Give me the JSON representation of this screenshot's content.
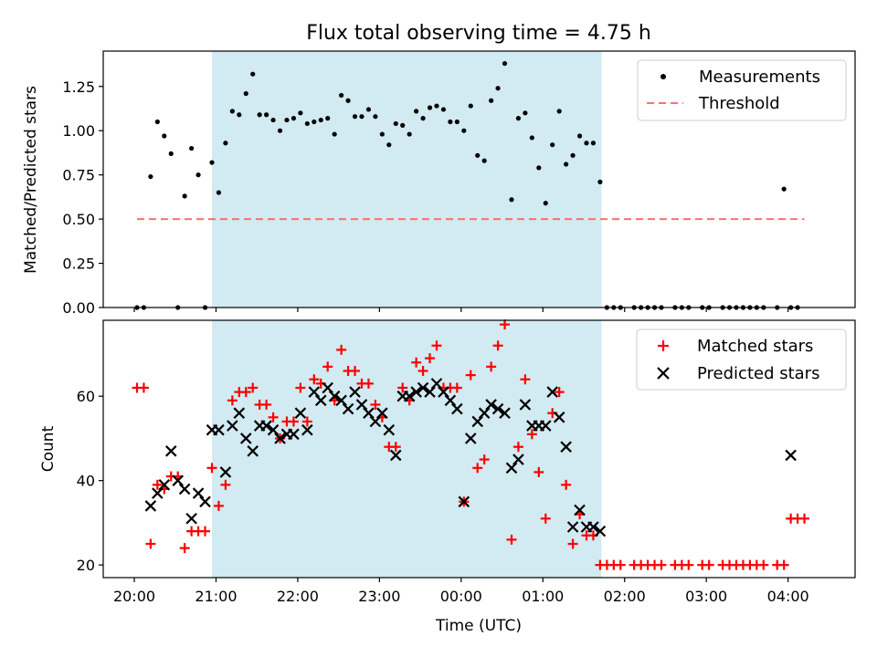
{
  "chart_data": [
    {
      "type": "scatter",
      "title": "Flux total observing time = 4.75 h",
      "ylabel": "Matched/Predicted stars",
      "ylim": [
        0,
        1.45
      ],
      "yticks": [
        0.0,
        0.25,
        0.5,
        0.75,
        1.0,
        1.25
      ],
      "ytick_labels": [
        "0.00",
        "0.25",
        "0.50",
        "0.75",
        "1.00",
        "1.25"
      ],
      "xlim_hours": [
        19.62,
        28.82
      ],
      "shaded_interval": [
        "20:57",
        "01:43"
      ],
      "shaded_color": "#add8e6",
      "legend_position": "upper right",
      "series": [
        {
          "name": "Measurements",
          "marker": "dot",
          "color": "#000000",
          "x": [
            "20:02",
            "20:07",
            "20:12",
            "20:17",
            "20:22",
            "20:27",
            "20:32",
            "20:37",
            "20:42",
            "20:47",
            "20:52",
            "20:57",
            "21:02",
            "21:07",
            "21:12",
            "21:17",
            "21:22",
            "21:27",
            "21:32",
            "21:37",
            "21:42",
            "21:47",
            "21:52",
            "21:57",
            "22:02",
            "22:07",
            "22:12",
            "22:17",
            "22:22",
            "22:27",
            "22:32",
            "22:37",
            "22:42",
            "22:47",
            "22:52",
            "22:57",
            "23:02",
            "23:07",
            "23:12",
            "23:17",
            "23:22",
            "23:27",
            "23:32",
            "23:37",
            "23:42",
            "23:47",
            "23:52",
            "23:57",
            "00:02",
            "00:07",
            "00:12",
            "00:17",
            "00:22",
            "00:27",
            "00:32",
            "00:37",
            "00:42",
            "00:47",
            "00:52",
            "00:57",
            "01:02",
            "01:07",
            "01:12",
            "01:17",
            "01:22",
            "01:27",
            "01:32",
            "01:37",
            "01:42",
            "01:47",
            "01:52",
            "01:57",
            "02:07",
            "02:12",
            "02:17",
            "02:22",
            "02:27",
            "02:37",
            "02:42",
            "02:47",
            "02:57",
            "03:02",
            "03:12",
            "03:17",
            "03:22",
            "03:27",
            "03:32",
            "03:37",
            "03:42",
            "03:52",
            "03:57",
            "04:02",
            "04:07"
          ],
          "y": [
            0,
            0,
            0.74,
            1.05,
            0.97,
            0.87,
            0,
            0.63,
            0.9,
            0.75,
            0,
            0.82,
            0.65,
            0.93,
            1.11,
            1.09,
            1.21,
            1.32,
            1.09,
            1.09,
            1.06,
            1.0,
            1.06,
            1.07,
            1.1,
            1.04,
            1.05,
            1.06,
            1.07,
            0.98,
            1.2,
            1.17,
            1.08,
            1.08,
            1.12,
            1.08,
            0.98,
            0.92,
            1.04,
            1.03,
            0.98,
            1.11,
            1.07,
            1.13,
            1.14,
            1.12,
            1.05,
            1.05,
            1.0,
            1.14,
            0.86,
            0.83,
            1.17,
            1.24,
            1.38,
            0.61,
            1.07,
            1.1,
            0.96,
            0.79,
            0.59,
            0.92,
            1.11,
            0.81,
            0.86,
            0.97,
            0.93,
            0.93,
            0.71,
            0,
            0,
            0,
            0,
            0,
            0,
            0,
            0,
            0,
            0,
            0,
            0,
            0,
            0,
            0,
            0,
            0,
            0,
            0,
            0,
            0,
            0.67,
            0,
            0
          ]
        },
        {
          "name": "Threshold",
          "style": "dashed",
          "color": "#ff6f6f",
          "x": [
            "20:02",
            "04:12"
          ],
          "y": [
            0.5,
            0.5
          ]
        }
      ]
    },
    {
      "type": "scatter",
      "xlabel": "Time (UTC)",
      "ylabel": "Count",
      "ylim": [
        17,
        78
      ],
      "yticks": [
        20,
        40,
        60
      ],
      "ytick_labels": [
        "20",
        "40",
        "60"
      ],
      "xticks": [
        "20:00",
        "21:00",
        "22:00",
        "23:00",
        "00:00",
        "01:00",
        "02:00",
        "03:00",
        "04:00"
      ],
      "xtick_hours": [
        20,
        21,
        22,
        23,
        24,
        25,
        26,
        27,
        28
      ],
      "xlim_hours": [
        19.62,
        28.82
      ],
      "shaded_interval": [
        "20:57",
        "01:43"
      ],
      "shaded_color": "#add8e6",
      "legend_position": "upper right",
      "series": [
        {
          "name": "Matched stars",
          "marker": "plus",
          "color": "#ff0000",
          "x": [
            "20:02",
            "20:07",
            "20:12",
            "20:17",
            "20:22",
            "20:27",
            "20:32",
            "20:37",
            "20:42",
            "20:47",
            "20:52",
            "20:57",
            "21:02",
            "21:07",
            "21:12",
            "21:17",
            "21:22",
            "21:27",
            "21:32",
            "21:37",
            "21:42",
            "21:47",
            "21:52",
            "21:57",
            "22:02",
            "22:07",
            "22:12",
            "22:17",
            "22:22",
            "22:27",
            "22:32",
            "22:37",
            "22:42",
            "22:47",
            "22:52",
            "22:57",
            "23:02",
            "23:07",
            "23:12",
            "23:17",
            "23:22",
            "23:27",
            "23:32",
            "23:37",
            "23:42",
            "23:47",
            "23:52",
            "23:57",
            "00:02",
            "00:07",
            "00:12",
            "00:17",
            "00:22",
            "00:27",
            "00:32",
            "00:37",
            "00:42",
            "00:47",
            "00:52",
            "00:57",
            "01:02",
            "01:07",
            "01:12",
            "01:17",
            "01:22",
            "01:27",
            "01:32",
            "01:37",
            "01:42",
            "01:47",
            "01:52",
            "01:57",
            "02:07",
            "02:12",
            "02:17",
            "02:22",
            "02:27",
            "02:37",
            "02:42",
            "02:47",
            "02:57",
            "03:02",
            "03:12",
            "03:17",
            "03:22",
            "03:27",
            "03:32",
            "03:37",
            "03:42",
            "03:52",
            "03:57",
            "04:02",
            "04:07",
            "04:12"
          ],
          "y": [
            62,
            62,
            25,
            39,
            38,
            41,
            41,
            24,
            28,
            28,
            28,
            43,
            34,
            39,
            59,
            61,
            61,
            62,
            58,
            58,
            55,
            50,
            54,
            54,
            62,
            54,
            64,
            63,
            67,
            59,
            71,
            66,
            66,
            63,
            63,
            58,
            55,
            48,
            48,
            62,
            59,
            68,
            66,
            69,
            72,
            62,
            62,
            62,
            35,
            65,
            43,
            45,
            67,
            72,
            77,
            26,
            48,
            64,
            51,
            42,
            31,
            56,
            61,
            39,
            25,
            32,
            27,
            27,
            20,
            20,
            20,
            20,
            20,
            20,
            20,
            20,
            20,
            20,
            20,
            20,
            20,
            20,
            20,
            20,
            20,
            20,
            20,
            20,
            20,
            20,
            20,
            31,
            31,
            31
          ]
        },
        {
          "name": "Predicted stars",
          "marker": "x",
          "color": "#000000",
          "x": [
            "20:12",
            "20:17",
            "20:22",
            "20:27",
            "20:32",
            "20:37",
            "20:42",
            "20:47",
            "20:52",
            "20:57",
            "21:02",
            "21:07",
            "21:12",
            "21:17",
            "21:22",
            "21:27",
            "21:32",
            "21:37",
            "21:42",
            "21:47",
            "21:52",
            "21:57",
            "22:02",
            "22:07",
            "22:12",
            "22:17",
            "22:22",
            "22:27",
            "22:32",
            "22:37",
            "22:42",
            "22:47",
            "22:52",
            "22:57",
            "23:02",
            "23:07",
            "23:12",
            "23:17",
            "23:22",
            "23:27",
            "23:32",
            "23:37",
            "23:42",
            "23:47",
            "23:52",
            "23:57",
            "00:02",
            "00:07",
            "00:12",
            "00:17",
            "00:22",
            "00:27",
            "00:32",
            "00:37",
            "00:42",
            "00:47",
            "00:52",
            "00:57",
            "01:02",
            "01:07",
            "01:12",
            "01:17",
            "01:22",
            "01:27",
            "01:32",
            "01:37",
            "01:42",
            "04:02"
          ],
          "y": [
            34,
            37,
            39,
            47,
            40,
            38,
            31,
            37,
            35,
            52,
            52,
            42,
            53,
            56,
            50,
            47,
            53,
            53,
            52,
            50,
            51,
            51,
            56,
            52,
            61,
            59,
            62,
            60,
            59,
            57,
            61,
            58,
            56,
            54,
            56,
            52,
            46,
            60,
            60,
            61,
            62,
            61,
            63,
            61,
            59,
            57,
            35,
            50,
            54,
            56,
            58,
            57,
            56,
            43,
            45,
            58,
            53,
            53,
            53,
            61,
            55,
            48,
            29,
            33,
            29,
            29,
            28,
            46
          ]
        }
      ]
    }
  ]
}
